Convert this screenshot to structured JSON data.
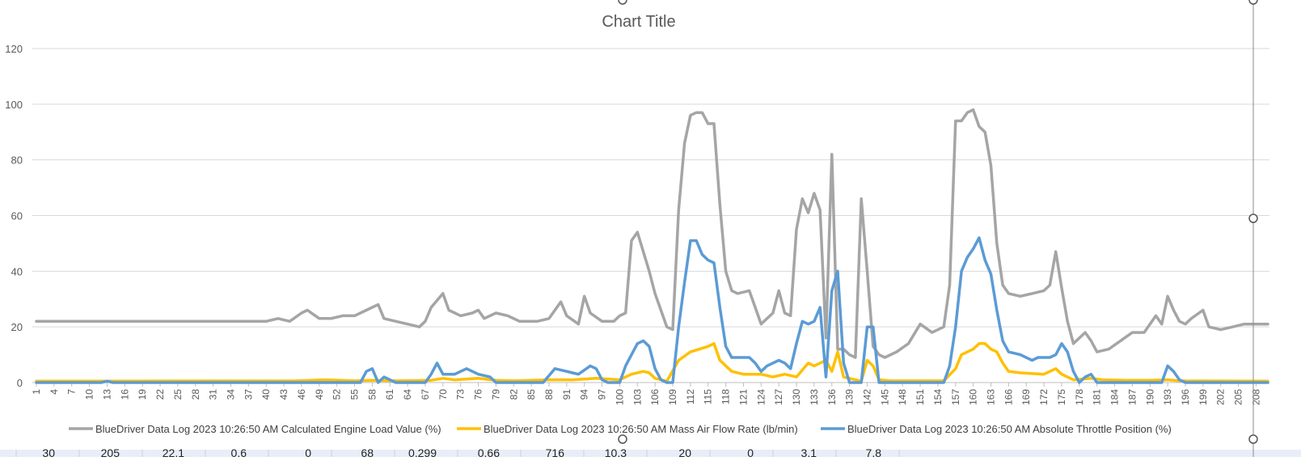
{
  "chart_data": {
    "type": "line",
    "title": "Chart Title",
    "xlabel": "",
    "ylabel": "",
    "ylim": [
      0,
      120
    ],
    "yticks": [
      0,
      20,
      40,
      60,
      80,
      100,
      120
    ],
    "xrange": [
      1,
      210
    ],
    "xtick_step": 3,
    "grid": true,
    "legend_position": "bottom",
    "series": [
      {
        "name": "BlueDriver Data Log  2023 10:26:50 AM Calculated Engine Load Value (%)",
        "color": "#a5a5a5",
        "points": [
          [
            1,
            22
          ],
          [
            5,
            22
          ],
          [
            10,
            22
          ],
          [
            15,
            22
          ],
          [
            20,
            22
          ],
          [
            25,
            22
          ],
          [
            30,
            22
          ],
          [
            35,
            22
          ],
          [
            40,
            22
          ],
          [
            42,
            23
          ],
          [
            44,
            22
          ],
          [
            46,
            25
          ],
          [
            47,
            26
          ],
          [
            49,
            23
          ],
          [
            51,
            23
          ],
          [
            53,
            24
          ],
          [
            55,
            24
          ],
          [
            57,
            26
          ],
          [
            59,
            28
          ],
          [
            60,
            23
          ],
          [
            62,
            22
          ],
          [
            64,
            21
          ],
          [
            66,
            20
          ],
          [
            67,
            22
          ],
          [
            68,
            27
          ],
          [
            70,
            32
          ],
          [
            71,
            26
          ],
          [
            73,
            24
          ],
          [
            75,
            25
          ],
          [
            76,
            26
          ],
          [
            77,
            23
          ],
          [
            79,
            25
          ],
          [
            81,
            24
          ],
          [
            83,
            22
          ],
          [
            86,
            22
          ],
          [
            88,
            23
          ],
          [
            90,
            29
          ],
          [
            91,
            24
          ],
          [
            93,
            21
          ],
          [
            94,
            31
          ],
          [
            95,
            25
          ],
          [
            97,
            22
          ],
          [
            99,
            22
          ],
          [
            100,
            24
          ],
          [
            101,
            25
          ],
          [
            102,
            51
          ],
          [
            103,
            54
          ],
          [
            105,
            40
          ],
          [
            106,
            32
          ],
          [
            108,
            20
          ],
          [
            109,
            19
          ],
          [
            110,
            62
          ],
          [
            111,
            86
          ],
          [
            112,
            96
          ],
          [
            113,
            97
          ],
          [
            114,
            97
          ],
          [
            115,
            93
          ],
          [
            116,
            93
          ],
          [
            117,
            64
          ],
          [
            118,
            40
          ],
          [
            119,
            33
          ],
          [
            120,
            32
          ],
          [
            122,
            33
          ],
          [
            124,
            21
          ],
          [
            126,
            25
          ],
          [
            127,
            33
          ],
          [
            128,
            25
          ],
          [
            129,
            24
          ],
          [
            130,
            55
          ],
          [
            131,
            66
          ],
          [
            132,
            61
          ],
          [
            133,
            68
          ],
          [
            134,
            62
          ],
          [
            135,
            16
          ],
          [
            136,
            82
          ],
          [
            137,
            12
          ],
          [
            138,
            12
          ],
          [
            139,
            10
          ],
          [
            140,
            9
          ],
          [
            141,
            66
          ],
          [
            142,
            40
          ],
          [
            143,
            13
          ],
          [
            144,
            10
          ],
          [
            145,
            9
          ],
          [
            147,
            11
          ],
          [
            149,
            14
          ],
          [
            151,
            21
          ],
          [
            153,
            18
          ],
          [
            155,
            20
          ],
          [
            156,
            35
          ],
          [
            157,
            94
          ],
          [
            158,
            94
          ],
          [
            159,
            97
          ],
          [
            160,
            98
          ],
          [
            161,
            92
          ],
          [
            162,
            90
          ],
          [
            163,
            78
          ],
          [
            164,
            50
          ],
          [
            165,
            35
          ],
          [
            166,
            32
          ],
          [
            168,
            31
          ],
          [
            170,
            32
          ],
          [
            172,
            33
          ],
          [
            173,
            35
          ],
          [
            174,
            47
          ],
          [
            175,
            34
          ],
          [
            176,
            22
          ],
          [
            177,
            14
          ],
          [
            179,
            18
          ],
          [
            180,
            15
          ],
          [
            181,
            11
          ],
          [
            183,
            12
          ],
          [
            185,
            15
          ],
          [
            187,
            18
          ],
          [
            189,
            18
          ],
          [
            191,
            24
          ],
          [
            192,
            21
          ],
          [
            193,
            31
          ],
          [
            194,
            26
          ],
          [
            195,
            22
          ],
          [
            196,
            21
          ],
          [
            197,
            23
          ],
          [
            199,
            26
          ],
          [
            200,
            20
          ],
          [
            202,
            19
          ],
          [
            204,
            20
          ],
          [
            206,
            21
          ],
          [
            208,
            21
          ],
          [
            210,
            21
          ]
        ]
      },
      {
        "name": "BlueDriver Data Log  2023 10:26:50 AM Mass Air Flow Rate (lb/min)",
        "color": "#ffc000",
        "points": [
          [
            1,
            0.5
          ],
          [
            45,
            0.6
          ],
          [
            50,
            1
          ],
          [
            55,
            0.6
          ],
          [
            58,
            0.8
          ],
          [
            62,
            0.6
          ],
          [
            68,
            0.8
          ],
          [
            70,
            1.5
          ],
          [
            72,
            1
          ],
          [
            76,
            1.5
          ],
          [
            79,
            0.8
          ],
          [
            82,
            0.6
          ],
          [
            88,
            1
          ],
          [
            92,
            1
          ],
          [
            96,
            1.5
          ],
          [
            100,
            1
          ],
          [
            102,
            3
          ],
          [
            104,
            4
          ],
          [
            105,
            3.5
          ],
          [
            106,
            1.5
          ],
          [
            108,
            0.5
          ],
          [
            110,
            8
          ],
          [
            112,
            11
          ],
          [
            115,
            13
          ],
          [
            116,
            14
          ],
          [
            117,
            8
          ],
          [
            119,
            4
          ],
          [
            121,
            3
          ],
          [
            124,
            3
          ],
          [
            126,
            2
          ],
          [
            128,
            3
          ],
          [
            130,
            2
          ],
          [
            132,
            7
          ],
          [
            133,
            6
          ],
          [
            135,
            8
          ],
          [
            136,
            4
          ],
          [
            137,
            11
          ],
          [
            138,
            2
          ],
          [
            140,
            1
          ],
          [
            141,
            0.5
          ],
          [
            142,
            8
          ],
          [
            143,
            6
          ],
          [
            144,
            1
          ],
          [
            146,
            0.6
          ],
          [
            150,
            0.6
          ],
          [
            155,
            0.6
          ],
          [
            157,
            5
          ],
          [
            158,
            10
          ],
          [
            160,
            12
          ],
          [
            161,
            14
          ],
          [
            162,
            14
          ],
          [
            163,
            12
          ],
          [
            164,
            11
          ],
          [
            165,
            7
          ],
          [
            166,
            4
          ],
          [
            168,
            3.5
          ],
          [
            172,
            3
          ],
          [
            174,
            5
          ],
          [
            175,
            3
          ],
          [
            177,
            1
          ],
          [
            180,
            1.5
          ],
          [
            182,
            1
          ],
          [
            186,
            0.8
          ],
          [
            190,
            0.8
          ],
          [
            193,
            1
          ],
          [
            195,
            0.6
          ],
          [
            210,
            0.5
          ]
        ]
      },
      {
        "name": "BlueDriver Data Log  2023 10:26:50 AM Absolute Throttle Position (%)",
        "color": "#5b9bd5",
        "points": [
          [
            1,
            0
          ],
          [
            12,
            0
          ],
          [
            13,
            0.5
          ],
          [
            14,
            0
          ],
          [
            56,
            0
          ],
          [
            57,
            4
          ],
          [
            58,
            5
          ],
          [
            59,
            0
          ],
          [
            60,
            2
          ],
          [
            61,
            1
          ],
          [
            62,
            0
          ],
          [
            67,
            0
          ],
          [
            68,
            3
          ],
          [
            69,
            7
          ],
          [
            70,
            3
          ],
          [
            72,
            3
          ],
          [
            74,
            5
          ],
          [
            76,
            3
          ],
          [
            78,
            2
          ],
          [
            79,
            0
          ],
          [
            87,
            0
          ],
          [
            89,
            5
          ],
          [
            91,
            4
          ],
          [
            92,
            3.5
          ],
          [
            93,
            3
          ],
          [
            95,
            6
          ],
          [
            96,
            5
          ],
          [
            97,
            1
          ],
          [
            98,
            0
          ],
          [
            100,
            0
          ],
          [
            101,
            6
          ],
          [
            102,
            10
          ],
          [
            103,
            14
          ],
          [
            104,
            15
          ],
          [
            105,
            13
          ],
          [
            106,
            5
          ],
          [
            107,
            1
          ],
          [
            108,
            0
          ],
          [
            109,
            0
          ],
          [
            110,
            20
          ],
          [
            111,
            36
          ],
          [
            112,
            51
          ],
          [
            113,
            51
          ],
          [
            114,
            46
          ],
          [
            115,
            44
          ],
          [
            116,
            43
          ],
          [
            117,
            27
          ],
          [
            118,
            13
          ],
          [
            119,
            9
          ],
          [
            122,
            9
          ],
          [
            123,
            7
          ],
          [
            124,
            4
          ],
          [
            125,
            6
          ],
          [
            126,
            7
          ],
          [
            127,
            8
          ],
          [
            128,
            7
          ],
          [
            129,
            5
          ],
          [
            130,
            14
          ],
          [
            131,
            22
          ],
          [
            132,
            21
          ],
          [
            133,
            22
          ],
          [
            134,
            27
          ],
          [
            135,
            2
          ],
          [
            136,
            33
          ],
          [
            137,
            40
          ],
          [
            138,
            7
          ],
          [
            139,
            0
          ],
          [
            141,
            0
          ],
          [
            142,
            20
          ],
          [
            143,
            20
          ],
          [
            144,
            0
          ],
          [
            155,
            0
          ],
          [
            156,
            6
          ],
          [
            157,
            20
          ],
          [
            158,
            40
          ],
          [
            159,
            45
          ],
          [
            160,
            48
          ],
          [
            161,
            52
          ],
          [
            162,
            44
          ],
          [
            163,
            39
          ],
          [
            164,
            26
          ],
          [
            165,
            15
          ],
          [
            166,
            11
          ],
          [
            168,
            10
          ],
          [
            170,
            8
          ],
          [
            171,
            9
          ],
          [
            173,
            9
          ],
          [
            174,
            10
          ],
          [
            175,
            14
          ],
          [
            176,
            11
          ],
          [
            177,
            4
          ],
          [
            178,
            0
          ],
          [
            179,
            2
          ],
          [
            180,
            3
          ],
          [
            181,
            0
          ],
          [
            192,
            0
          ],
          [
            193,
            6
          ],
          [
            194,
            4
          ],
          [
            195,
            1
          ],
          [
            196,
            0
          ],
          [
            210,
            0
          ]
        ]
      }
    ]
  },
  "table_row": [
    "30",
    "205",
    "22.1",
    "0.6",
    "0",
    "68",
    "0.299",
    "0.66",
    "716",
    "10.3",
    "20",
    "0",
    "3.1",
    "7.8"
  ]
}
